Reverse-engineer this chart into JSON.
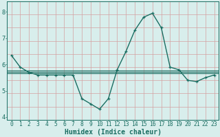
{
  "x": [
    0,
    1,
    2,
    3,
    4,
    5,
    6,
    7,
    8,
    9,
    10,
    11,
    12,
    13,
    14,
    15,
    16,
    17,
    18,
    19,
    20,
    21,
    22,
    23
  ],
  "y_main": [
    6.35,
    5.9,
    5.7,
    5.6,
    5.6,
    5.6,
    5.6,
    5.6,
    4.7,
    4.5,
    4.3,
    4.7,
    5.8,
    6.5,
    7.3,
    7.8,
    7.95,
    7.4,
    5.9,
    5.8,
    5.4,
    5.35,
    5.5,
    5.6
  ],
  "y_flat1": 5.72,
  "y_flat2": 5.78,
  "y_flat3": 5.67,
  "line_color": "#1a6e62",
  "bg_color": "#d8eeec",
  "grid_color_v": "#d4a0a0",
  "grid_color_h": "#d4a0a0",
  "xlabel": "Humidex (Indice chaleur)",
  "ylim": [
    3.9,
    8.4
  ],
  "xlim": [
    -0.5,
    23.5
  ],
  "yticks": [
    4,
    5,
    6,
    7,
    8
  ],
  "xticks": [
    0,
    1,
    2,
    3,
    4,
    5,
    6,
    7,
    8,
    9,
    10,
    11,
    12,
    13,
    14,
    15,
    16,
    17,
    18,
    19,
    20,
    21,
    22,
    23
  ],
  "tick_fontsize": 5.8,
  "label_fontsize": 7.0
}
